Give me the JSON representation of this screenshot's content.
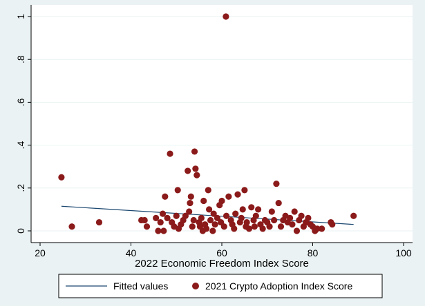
{
  "chart_data": {
    "type": "scatter",
    "title": "",
    "xlabel": "2022 Economic Freedom Index Score",
    "ylabel": "",
    "xlim": [
      20,
      100
    ],
    "ylim": [
      0,
      1
    ],
    "x_ticks": [
      20,
      40,
      60,
      80,
      100
    ],
    "x_tick_labels": [
      "20",
      "40",
      "60",
      "80",
      "100"
    ],
    "y_ticks": [
      0,
      0.2,
      0.4,
      0.6,
      0.8,
      1
    ],
    "y_tick_labels": [
      "0",
      ".2",
      ".4",
      ".6",
      ".8",
      "1"
    ],
    "grid": "horizontal",
    "legend": {
      "position": "bottom",
      "entries": [
        "Fitted values",
        "2021 Crypto Adoption Index Score"
      ]
    },
    "colors": {
      "background": "#eaf2f3",
      "plot_background": "#ffffff",
      "grid": "#eaf2f3",
      "scatter": "#8b1a1a",
      "fit_line": "#1a476f"
    },
    "series": [
      {
        "name": "Fitted values",
        "kind": "line",
        "x": [
          24.7,
          89
        ],
        "y": [
          0.115,
          0.03
        ]
      },
      {
        "name": "2021 Crypto Adoption Index Score",
        "kind": "scatter",
        "points": [
          [
            60.9,
            1.0
          ],
          [
            24.7,
            0.25
          ],
          [
            27,
            0.02
          ],
          [
            33,
            0.04
          ],
          [
            42.3,
            0.05
          ],
          [
            43,
            0.05
          ],
          [
            43.5,
            0.02
          ],
          [
            45.5,
            0.06
          ],
          [
            46,
            0.0
          ],
          [
            46.5,
            0.04
          ],
          [
            47,
            0.08
          ],
          [
            47.2,
            0.0
          ],
          [
            47.5,
            0.16
          ],
          [
            48,
            0.06
          ],
          [
            48.6,
            0.36
          ],
          [
            49,
            0.04
          ],
          [
            49.5,
            0.02
          ],
          [
            50,
            0.07
          ],
          [
            50.3,
            0.19
          ],
          [
            50.5,
            0.01
          ],
          [
            51,
            0.03
          ],
          [
            51.5,
            0.05
          ],
          [
            52,
            0.07
          ],
          [
            52.5,
            0.28
          ],
          [
            52.8,
            0.09
          ],
          [
            53,
            0.13
          ],
          [
            53.2,
            0.16
          ],
          [
            53.5,
            0.02
          ],
          [
            53.8,
            0.05
          ],
          [
            54,
            0.37
          ],
          [
            54.2,
            0.29
          ],
          [
            54.5,
            0.26
          ],
          [
            55,
            0.04
          ],
          [
            55.2,
            0.02
          ],
          [
            55.5,
            0.06
          ],
          [
            55.8,
            0.0
          ],
          [
            56,
            0.14
          ],
          [
            56.3,
            0.03
          ],
          [
            56.6,
            0.01
          ],
          [
            57,
            0.19
          ],
          [
            57.2,
            0.1
          ],
          [
            57.5,
            0.05
          ],
          [
            58,
            0.0
          ],
          [
            58.2,
            0.08
          ],
          [
            58.5,
            0.03
          ],
          [
            59,
            0.06
          ],
          [
            59.5,
            0.12
          ],
          [
            59.8,
            0.04
          ],
          [
            60,
            0.14
          ],
          [
            60.5,
            0.02
          ],
          [
            61,
            0.07
          ],
          [
            61.5,
            0.16
          ],
          [
            62,
            0.05
          ],
          [
            62.3,
            0.03
          ],
          [
            62.7,
            0.01
          ],
          [
            63,
            0.08
          ],
          [
            63.5,
            0.17
          ],
          [
            64,
            0.04
          ],
          [
            64.3,
            0.06
          ],
          [
            64.6,
            0.1
          ],
          [
            65,
            0.19
          ],
          [
            65.3,
            0.02
          ],
          [
            65.5,
            0.04
          ],
          [
            66,
            0.01
          ],
          [
            66.5,
            0.11
          ],
          [
            67,
            0.05
          ],
          [
            67.2,
            0.02
          ],
          [
            67.5,
            0.07
          ],
          [
            68,
            0.1
          ],
          [
            68.5,
            0.03
          ],
          [
            69,
            0.01
          ],
          [
            69.5,
            0.05
          ],
          [
            70,
            0.04
          ],
          [
            70.5,
            0.02
          ],
          [
            71,
            0.09
          ],
          [
            71.5,
            0.05
          ],
          [
            72,
            0.22
          ],
          [
            72.5,
            0.13
          ],
          [
            73,
            0.02
          ],
          [
            73.5,
            0.05
          ],
          [
            74,
            0.07
          ],
          [
            74.5,
            0.04
          ],
          [
            75,
            0.06
          ],
          [
            75.5,
            0.03
          ],
          [
            76,
            0.09
          ],
          [
            76.5,
            0.0
          ],
          [
            77,
            0.05
          ],
          [
            77.5,
            0.07
          ],
          [
            78,
            0.02
          ],
          [
            78.5,
            0.04
          ],
          [
            79,
            0.06
          ],
          [
            79.5,
            0.03
          ],
          [
            80,
            0.02
          ],
          [
            80.5,
            0.0
          ],
          [
            81,
            0.01
          ],
          [
            82,
            0.01
          ],
          [
            84,
            0.04
          ],
          [
            84.3,
            0.03
          ],
          [
            89,
            0.07
          ]
        ]
      }
    ]
  }
}
